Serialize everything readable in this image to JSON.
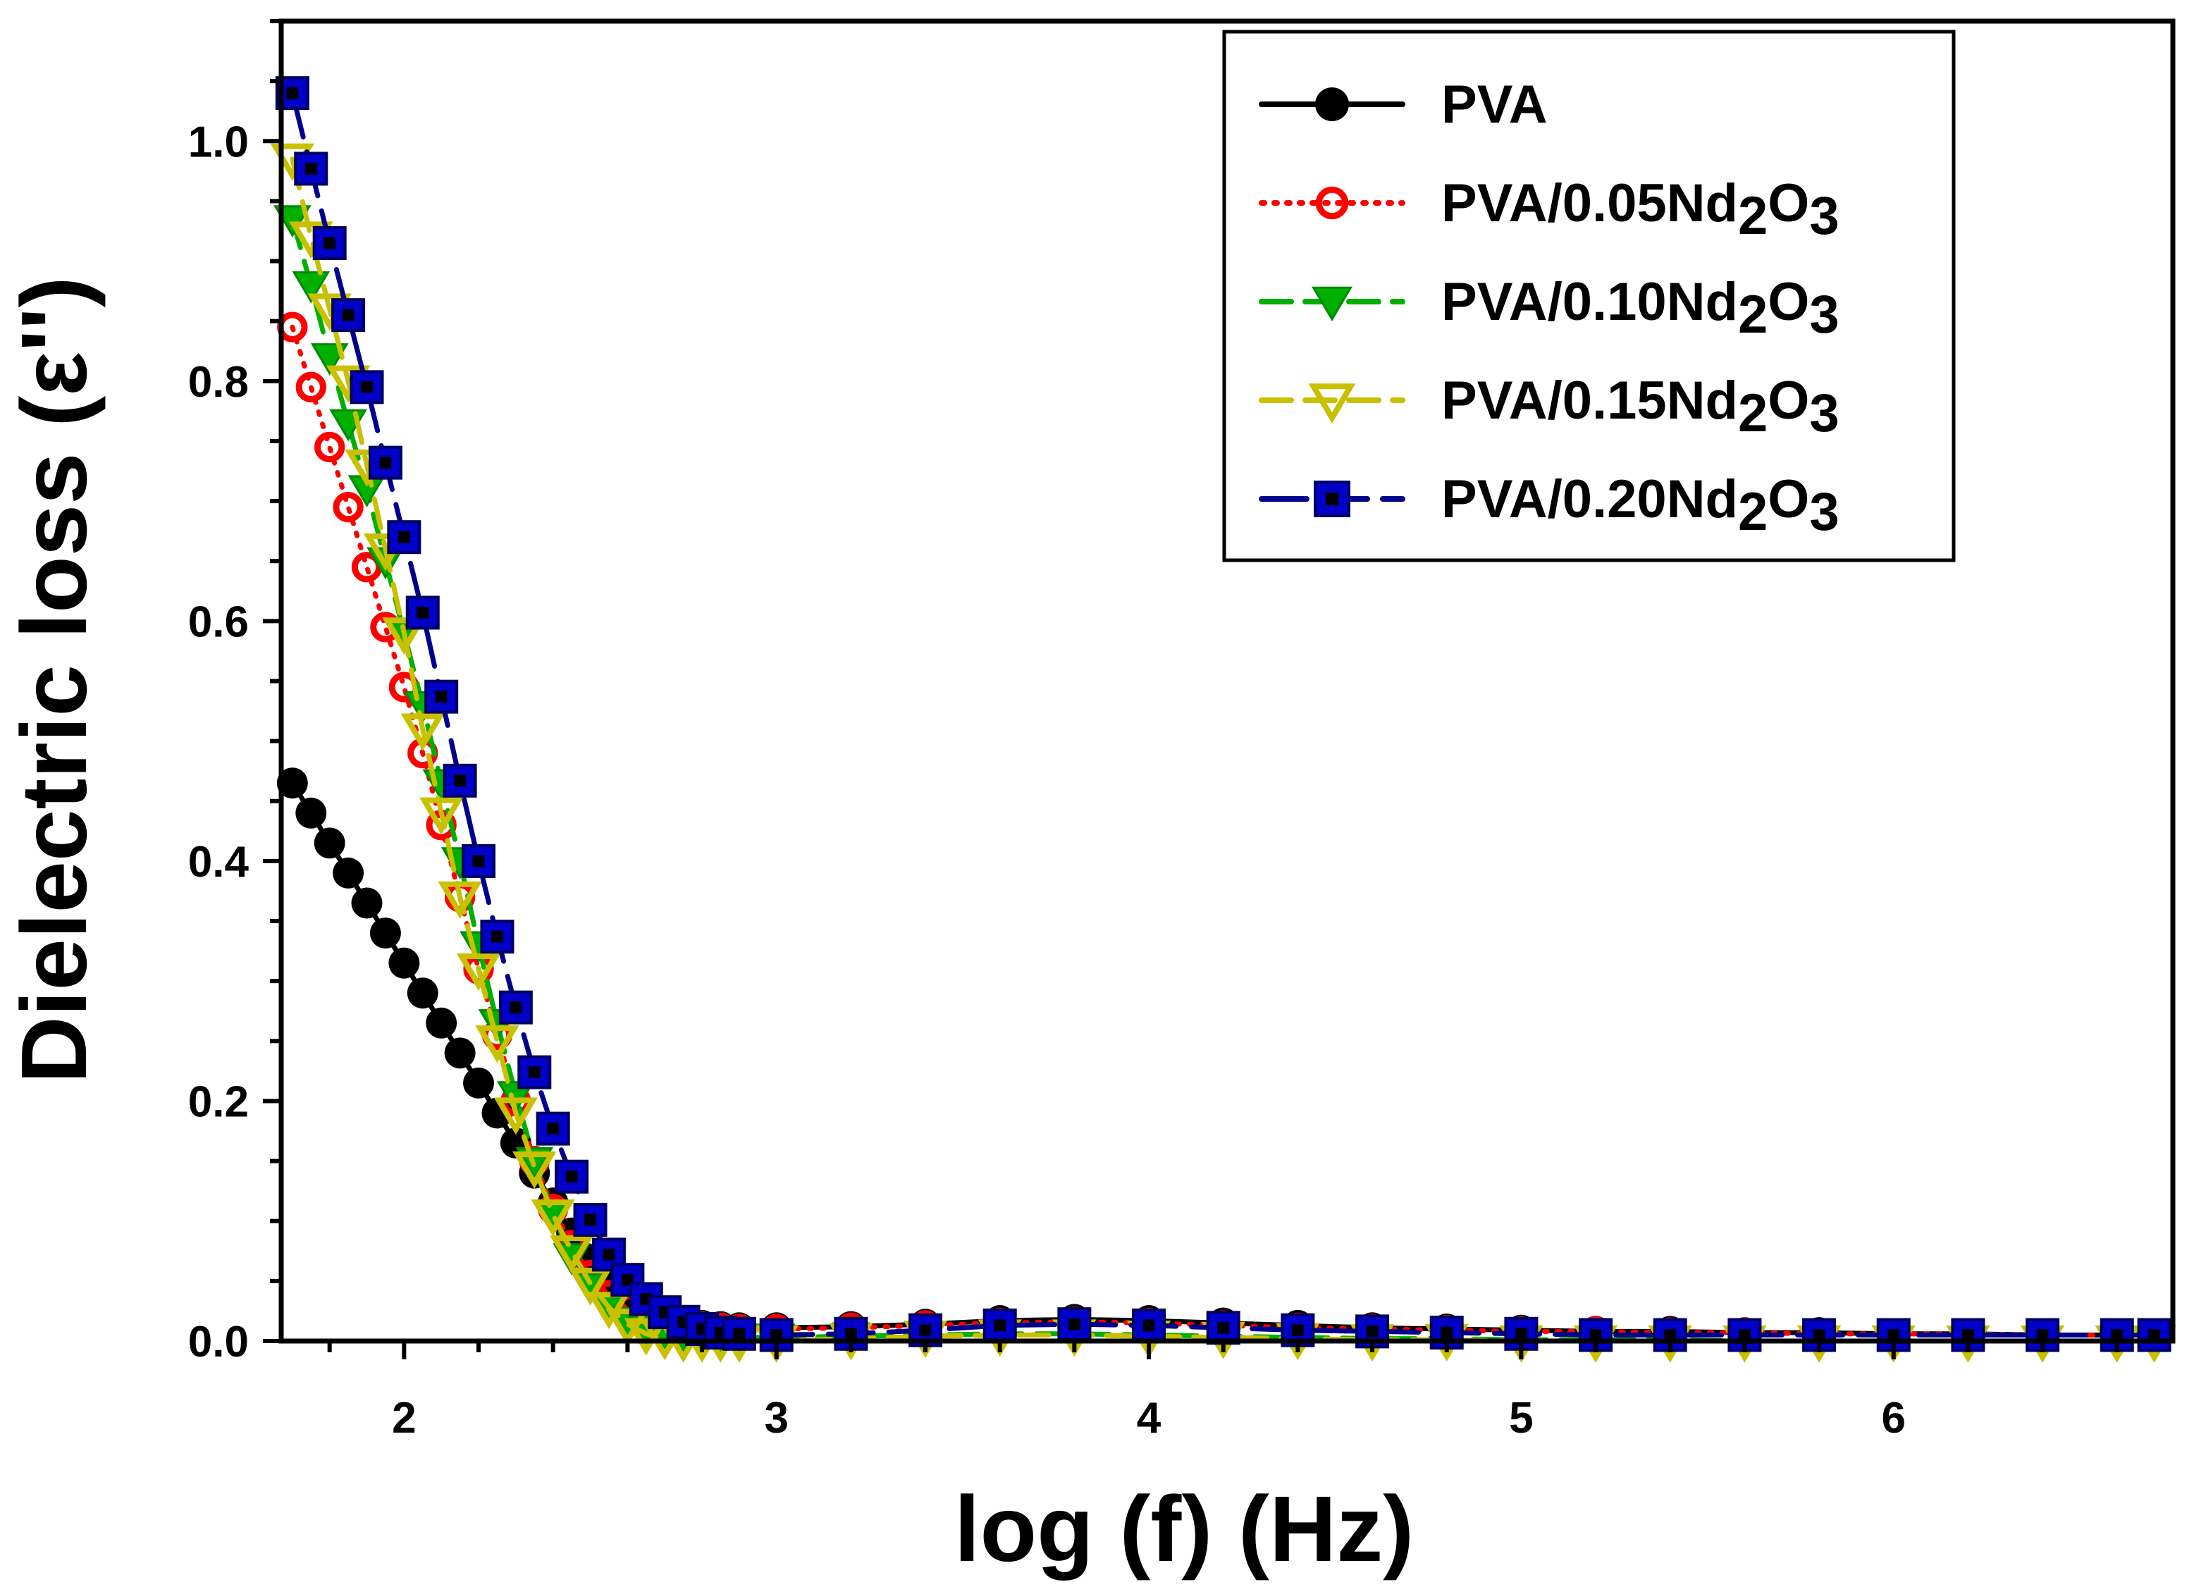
{
  "chart_data": {
    "type": "line",
    "title": "",
    "xlabel": "log (f) (Hz)",
    "ylabel": "Dielectric loss (ε'')",
    "xlim": [
      1.67,
      6.75
    ],
    "ylim": [
      0.0,
      1.1
    ],
    "x_ticks": [
      2,
      3,
      4,
      5,
      6
    ],
    "y_ticks": [
      0.0,
      0.2,
      0.4,
      0.6,
      0.8,
      1.0
    ],
    "x_tick_labels": [
      "2",
      "3",
      "4",
      "5",
      "6"
    ],
    "y_tick_labels": [
      "0.0",
      "0.2",
      "0.4",
      "0.6",
      "0.8",
      "1.0"
    ],
    "grid": false,
    "legend_position": "top-right",
    "x": [
      1.7,
      1.75,
      1.8,
      1.85,
      1.9,
      1.95,
      2.0,
      2.05,
      2.1,
      2.15,
      2.2,
      2.25,
      2.3,
      2.35,
      2.4,
      2.45,
      2.5,
      2.55,
      2.6,
      2.65,
      2.7,
      2.75,
      2.8,
      2.85,
      2.9,
      3.0,
      3.2,
      3.4,
      3.6,
      3.8,
      4.0,
      4.2,
      4.4,
      4.6,
      4.8,
      5.0,
      5.2,
      5.4,
      5.6,
      5.8,
      6.0,
      6.2,
      6.4,
      6.6,
      6.7
    ],
    "series": [
      {
        "name": "PVA",
        "name_main": "PVA",
        "name_sub": "",
        "name_mid": "",
        "name_sub2": "",
        "marker": "filled-circle",
        "line": "solid",
        "color": "#000000",
        "values": [
          0.465,
          0.44,
          0.415,
          0.39,
          0.365,
          0.34,
          0.315,
          0.29,
          0.265,
          0.24,
          0.215,
          0.19,
          0.165,
          0.14,
          0.115,
          0.09,
          0.068,
          0.05,
          0.036,
          0.026,
          0.019,
          0.015,
          0.013,
          0.012,
          0.011,
          0.011,
          0.012,
          0.014,
          0.017,
          0.018,
          0.017,
          0.015,
          0.013,
          0.011,
          0.01,
          0.009,
          0.008,
          0.008,
          0.007,
          0.007,
          0.006,
          0.006,
          0.005,
          0.005,
          0.005
        ]
      },
      {
        "name": "PVA/0.05Nd2O3",
        "name_main": "PVA/0.05Nd",
        "name_sub": "2",
        "name_mid": "O",
        "name_sub2": "3",
        "marker": "open-circle",
        "line": "dotted",
        "color": "#ff0000",
        "values": [
          0.845,
          0.795,
          0.745,
          0.695,
          0.645,
          0.595,
          0.545,
          0.49,
          0.43,
          0.37,
          0.31,
          0.255,
          0.2,
          0.15,
          0.11,
          0.08,
          0.055,
          0.038,
          0.027,
          0.02,
          0.016,
          0.014,
          0.012,
          0.011,
          0.01,
          0.01,
          0.011,
          0.013,
          0.015,
          0.016,
          0.015,
          0.013,
          0.011,
          0.01,
          0.009,
          0.008,
          0.008,
          0.007,
          0.007,
          0.006,
          0.006,
          0.006,
          0.005,
          0.005,
          0.005
        ]
      },
      {
        "name": "PVA/0.10Nd2O3",
        "name_main": "PVA/0.10Nd",
        "name_sub": "2",
        "name_mid": "O",
        "name_sub2": "3",
        "marker": "filled-triangle-down",
        "line": "dashed",
        "color": "#00b000",
        "values": [
          0.935,
          0.88,
          0.82,
          0.765,
          0.71,
          0.65,
          0.59,
          0.53,
          0.465,
          0.4,
          0.33,
          0.265,
          0.205,
          0.15,
          0.105,
          0.07,
          0.045,
          0.028,
          0.017,
          0.01,
          0.006,
          0.004,
          0.003,
          0.003,
          0.003,
          0.003,
          0.004,
          0.005,
          0.006,
          0.006,
          0.005,
          0.004,
          0.003,
          0.002,
          0.002,
          0.001,
          0.001,
          0.001,
          0.0,
          0.0,
          0.0,
          0.0,
          0.0,
          0.0,
          0.0
        ]
      },
      {
        "name": "PVA/0.15Nd2O3",
        "name_main": "PVA/0.15Nd",
        "name_sub": "2",
        "name_mid": "O",
        "name_sub2": "3",
        "marker": "open-triangle-down",
        "line": "dashed",
        "color": "#c8c000",
        "values": [
          0.985,
          0.92,
          0.86,
          0.8,
          0.73,
          0.66,
          0.59,
          0.51,
          0.44,
          0.37,
          0.31,
          0.25,
          0.19,
          0.145,
          0.105,
          0.075,
          0.048,
          0.028,
          0.014,
          0.006,
          0.002,
          0.0,
          0.0,
          0.0,
          0.0,
          0.0,
          0.002,
          0.004,
          0.005,
          0.005,
          0.004,
          0.003,
          0.002,
          0.001,
          0.001,
          0.0,
          0.0,
          0.0,
          0.0,
          0.0,
          0.0,
          0.0,
          0.0,
          0.0,
          0.0
        ]
      },
      {
        "name": "PVA/0.20Nd2O3",
        "name_main": "PVA/0.20Nd",
        "name_sub": "2",
        "name_mid": "O",
        "name_sub2": "3",
        "marker": "filled-square",
        "line": "long-dash",
        "color": "#00008c",
        "values": [
          1.04,
          0.977,
          0.915,
          0.855,
          0.795,
          0.732,
          0.67,
          0.607,
          0.537,
          0.467,
          0.4,
          0.337,
          0.278,
          0.224,
          0.177,
          0.137,
          0.101,
          0.072,
          0.051,
          0.035,
          0.024,
          0.016,
          0.01,
          0.007,
          0.006,
          0.005,
          0.006,
          0.009,
          0.013,
          0.014,
          0.013,
          0.011,
          0.009,
          0.008,
          0.007,
          0.006,
          0.005,
          0.005,
          0.005,
          0.005,
          0.005,
          0.005,
          0.005,
          0.005,
          0.005
        ]
      }
    ]
  }
}
